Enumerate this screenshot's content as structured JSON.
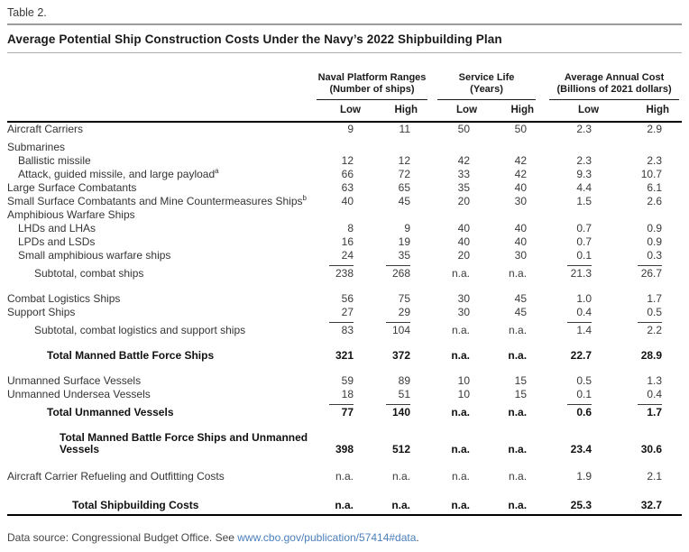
{
  "table_label": "Table 2.",
  "title": "Average Potential Ship Construction Costs Under the Navy’s 2022 Shipbuilding Plan",
  "columns": {
    "groups": [
      {
        "line1": "Naval Platform Ranges",
        "line2": "(Number of ships)"
      },
      {
        "line1": "Service Life",
        "line2": "(Years)"
      },
      {
        "line1": "Average Annual Cost",
        "line2": "(Billions of 2021 dollars)"
      }
    ],
    "subheaders": [
      "Low",
      "High",
      "Low",
      "High",
      "Low",
      "High"
    ]
  },
  "rows": [
    {
      "label": "Aircraft Carriers",
      "indent": 0,
      "bold": false,
      "gap": 0,
      "overline": false,
      "values": [
        "9",
        "11",
        "50",
        "50",
        "2.3",
        "2.9"
      ]
    },
    {
      "label": "Submarines",
      "indent": 0,
      "bold": false,
      "gap": 5,
      "overline": false,
      "values": [
        "",
        "",
        "",
        "",
        "",
        ""
      ]
    },
    {
      "label": "Ballistic missile",
      "indent": 1,
      "bold": false,
      "gap": 0,
      "overline": false,
      "values": [
        "12",
        "12",
        "42",
        "42",
        "2.3",
        "2.3"
      ]
    },
    {
      "label": "Attack, guided missile, and large payload",
      "sup": "a",
      "indent": 1,
      "bold": false,
      "gap": 0,
      "overline": false,
      "values": [
        "66",
        "72",
        "33",
        "42",
        "9.3",
        "10.7"
      ]
    },
    {
      "label": "Large Surface Combatants",
      "indent": 0,
      "bold": false,
      "gap": 0,
      "overline": false,
      "values": [
        "63",
        "65",
        "35",
        "40",
        "4.4",
        "6.1"
      ]
    },
    {
      "label": "Small Surface Combatants and Mine Countermeasures Ships",
      "sup": "b",
      "indent": 0,
      "bold": false,
      "gap": 0,
      "overline": false,
      "values": [
        "40",
        "45",
        "20",
        "30",
        "1.5",
        "2.6"
      ]
    },
    {
      "label": "Amphibious Warfare Ships",
      "indent": 0,
      "bold": false,
      "gap": 0,
      "overline": false,
      "values": [
        "",
        "",
        "",
        "",
        "",
        ""
      ]
    },
    {
      "label": "LHDs and LHAs",
      "indent": 1,
      "bold": false,
      "gap": 0,
      "overline": false,
      "values": [
        "8",
        "9",
        "40",
        "40",
        "0.7",
        "0.9"
      ]
    },
    {
      "label": "LPDs and LSDs",
      "indent": 1,
      "bold": false,
      "gap": 0,
      "overline": false,
      "values": [
        "16",
        "19",
        "40",
        "40",
        "0.7",
        "0.9"
      ]
    },
    {
      "label": "Small amphibious warfare ships",
      "indent": 1,
      "bold": false,
      "gap": 0,
      "overline": false,
      "values": [
        "24",
        "35",
        "20",
        "30",
        "0.1",
        "0.3"
      ]
    },
    {
      "label": "Subtotal, combat ships",
      "indent": 2,
      "bold": false,
      "gap": 2,
      "overline": true,
      "values": [
        "238",
        "268",
        "n.a.",
        "n.a.",
        "21.3",
        "26.7"
      ]
    },
    {
      "label": "Combat Logistics Ships",
      "indent": 0,
      "bold": false,
      "gap": 13,
      "overline": false,
      "values": [
        "56",
        "75",
        "30",
        "45",
        "1.0",
        "1.7"
      ]
    },
    {
      "label": "Support Ships",
      "indent": 0,
      "bold": false,
      "gap": 0,
      "overline": false,
      "values": [
        "27",
        "29",
        "30",
        "45",
        "0.4",
        "0.5"
      ]
    },
    {
      "label": "Subtotal, combat logistics and support ships",
      "indent": 2,
      "bold": false,
      "gap": 2,
      "overline": true,
      "values": [
        "83",
        "104",
        "n.a.",
        "n.a.",
        "1.4",
        "2.2"
      ]
    },
    {
      "label": "Total Manned Battle Force Ships",
      "indent": 3,
      "bold": true,
      "gap": 13,
      "overline": false,
      "values": [
        "321",
        "372",
        "n.a.",
        "n.a.",
        "22.7",
        "28.9"
      ]
    },
    {
      "label": "Unmanned Surface Vessels",
      "indent": 0,
      "bold": false,
      "gap": 13,
      "overline": false,
      "values": [
        "59",
        "89",
        "10",
        "15",
        "0.5",
        "1.3"
      ]
    },
    {
      "label": "Unmanned Undersea Vessels",
      "indent": 0,
      "bold": false,
      "gap": 0,
      "overline": false,
      "values": [
        "18",
        "51",
        "10",
        "15",
        "0.1",
        "0.4"
      ]
    },
    {
      "label": "Total Unmanned Vessels",
      "indent": 3,
      "bold": true,
      "gap": 2,
      "overline": true,
      "values": [
        "77",
        "140",
        "n.a.",
        "n.a.",
        "0.6",
        "1.7"
      ]
    },
    {
      "label": "Total Manned Battle Force Ships and Unmanned Vessels",
      "indent": 4,
      "bold": true,
      "gap": 13,
      "overline": false,
      "values": [
        "398",
        "512",
        "n.a.",
        "n.a.",
        "23.4",
        "30.6"
      ]
    },
    {
      "label": "Aircraft Carrier Refueling and Outfitting Costs",
      "indent": 0,
      "bold": false,
      "gap": 15,
      "overline": false,
      "values": [
        "n.a.",
        "n.a.",
        "n.a.",
        "n.a.",
        "1.9",
        "2.1"
      ]
    },
    {
      "label": "Total Shipbuilding Costs",
      "indent": 5,
      "bold": true,
      "gap": 17,
      "overline": false,
      "values": [
        "n.a.",
        "n.a.",
        "n.a.",
        "n.a.",
        "25.3",
        "32.7"
      ]
    }
  ],
  "footer": {
    "text_before_link": "Data source: Congressional Budget Office. See ",
    "link": "www.cbo.gov/publication/57414#data",
    "text_after_link": "."
  },
  "colors": {
    "link_blue": "#4a7ebb",
    "rule_gray": "#9c9c9c",
    "rule_black": "#000000",
    "text": "#2e2e2e"
  }
}
